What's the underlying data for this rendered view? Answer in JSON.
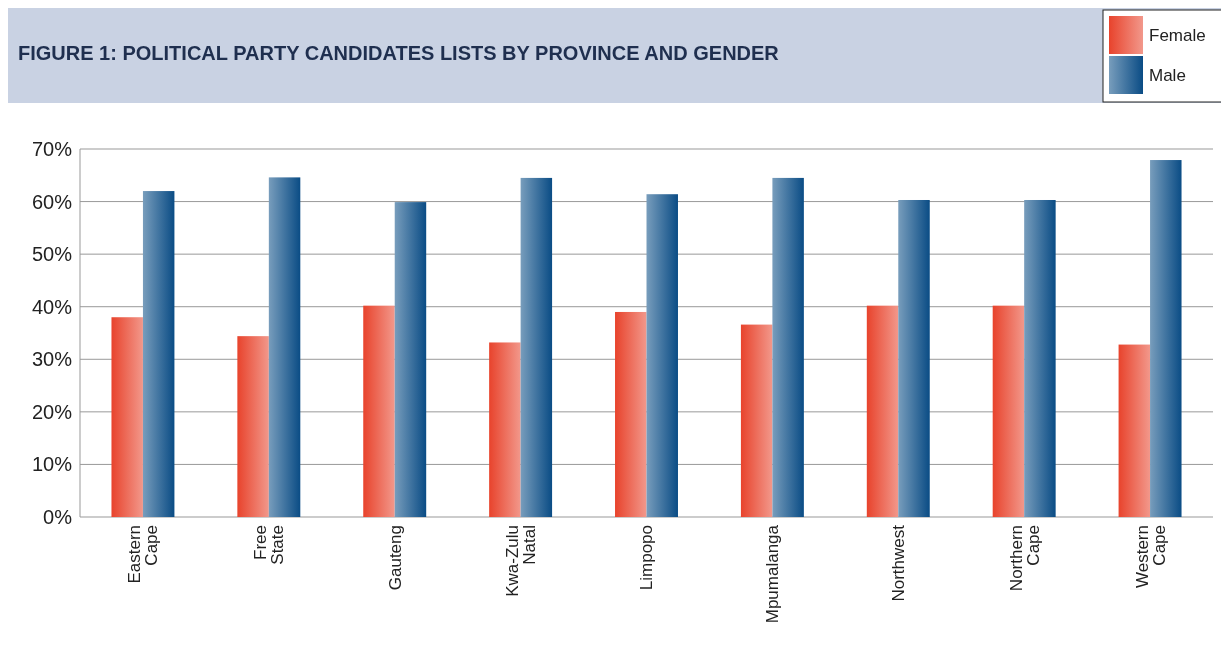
{
  "chart_data": {
    "type": "bar",
    "title": "FIGURE 1: POLITICAL PARTY CANDIDATES LISTS BY PROVINCE AND GENDER",
    "categories": [
      "Eastern Cape",
      "Free State",
      "Gauteng",
      "Kwa-Zulu Natal",
      "Limpopo",
      "Mpumalanga",
      "Northwest",
      "Northern Cape",
      "Western Cape"
    ],
    "series": [
      {
        "name": "Female",
        "color": "#e8432c",
        "values": [
          38,
          34.4,
          40.2,
          33.2,
          39,
          36.6,
          40.2,
          40.2,
          32.8
        ]
      },
      {
        "name": "Male",
        "color": "#0a4c85",
        "values": [
          62,
          64.6,
          59.9,
          64.5,
          61.4,
          64.5,
          60.3,
          60.3,
          67.9
        ]
      }
    ],
    "ylim": [
      0,
      70
    ],
    "yticks": [
      {
        "value": 0,
        "label": "0%"
      },
      {
        "value": 10,
        "label": "10%"
      },
      {
        "value": 20,
        "label": "20%"
      },
      {
        "value": 30,
        "label": "30%"
      },
      {
        "value": 40,
        "label": "40%"
      },
      {
        "value": 50,
        "label": "50%"
      },
      {
        "value": 60,
        "label": "60%"
      },
      {
        "value": 70,
        "label": "70%"
      }
    ],
    "grid": "y",
    "legend": "top right"
  }
}
